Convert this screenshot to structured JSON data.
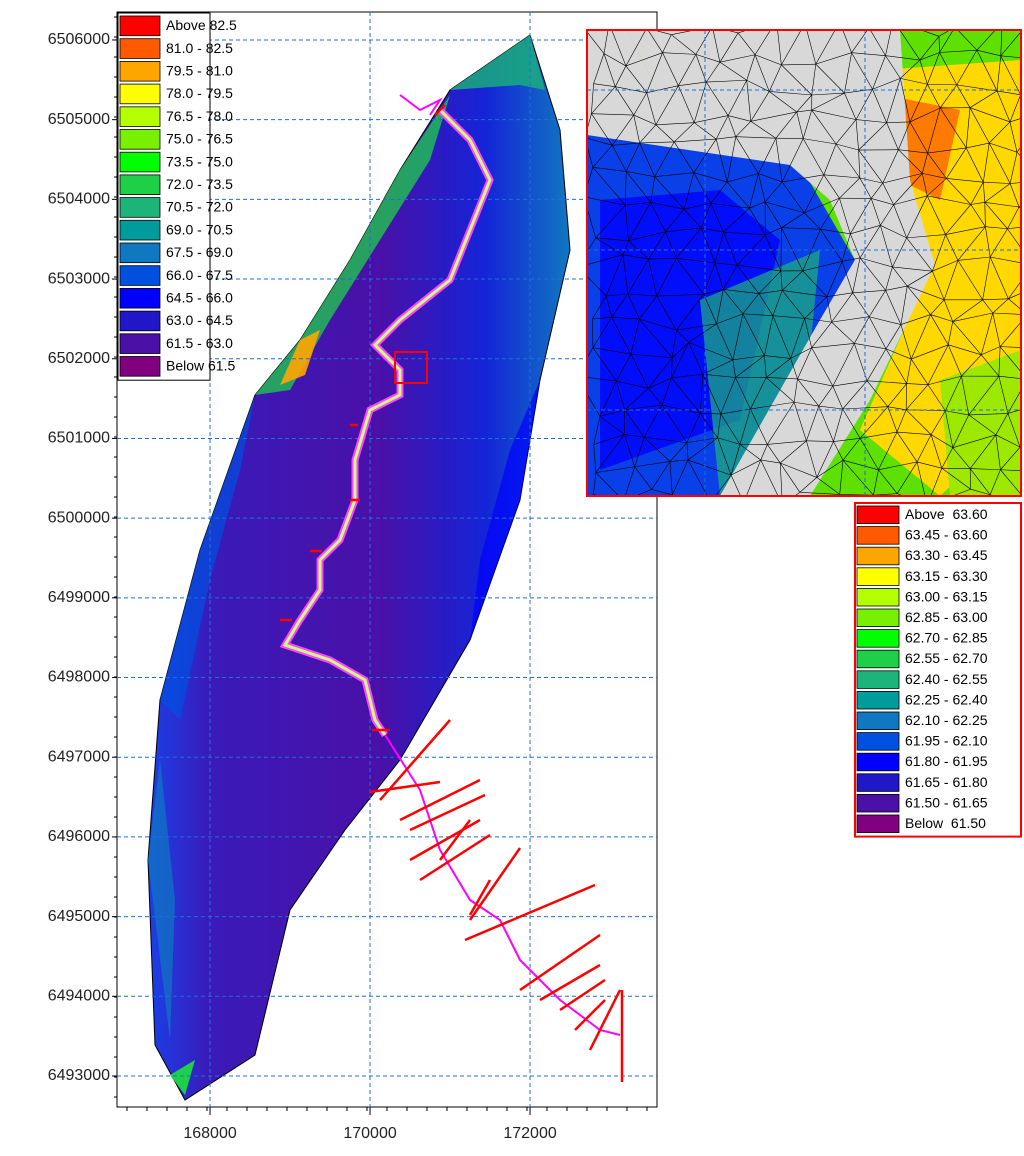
{
  "map": {
    "xlim": [
      166837,
      173587
    ],
    "ylim": [
      6492611,
      6506351
    ],
    "xticks": [
      168000,
      170000,
      172000
    ],
    "yticks": [
      6493000,
      6494000,
      6495000,
      6496000,
      6497000,
      6498000,
      6499000,
      6500000,
      6501000,
      6502000,
      6503000,
      6504000,
      6505000,
      6506000
    ],
    "grid": true,
    "legend": {
      "items": [
        {
          "label": "Above 82.5",
          "color": "#ff0000"
        },
        {
          "label": "81.0 - 82.5",
          "color": "#ff5a00"
        },
        {
          "label": "79.5 - 81.0",
          "color": "#ffa500"
        },
        {
          "label": "78.0 - 79.5",
          "color": "#ffff00"
        },
        {
          "label": "76.5 - 78.0",
          "color": "#b4ff00"
        },
        {
          "label": "75.0 - 76.5",
          "color": "#78f000"
        },
        {
          "label": "73.5 - 75.0",
          "color": "#00ff00"
        },
        {
          "label": "72.0 - 73.5",
          "color": "#1ed048"
        },
        {
          "label": "70.5 - 72.0",
          "color": "#1cb478"
        },
        {
          "label": "69.0 - 70.5",
          "color": "#009c9c"
        },
        {
          "label": "67.5 - 69.0",
          "color": "#1078c0"
        },
        {
          "label": "66.0 - 67.5",
          "color": "#0050e0"
        },
        {
          "label": "64.5 - 66.0",
          "color": "#0000ff"
        },
        {
          "label": "63.0 - 64.5",
          "color": "#2018c8"
        },
        {
          "label": "61.5 - 63.0",
          "color": "#4a10a8"
        },
        {
          "label": "Below 61.5",
          "color": "#800080"
        }
      ]
    },
    "inset_legend": {
      "items": [
        {
          "label": "Above  63.60",
          "color": "#ff0000"
        },
        {
          "label": "63.45 - 63.60",
          "color": "#ff5a00"
        },
        {
          "label": "63.30 - 63.45",
          "color": "#ffa500"
        },
        {
          "label": "63.15 - 63.30",
          "color": "#ffff00"
        },
        {
          "label": "63.00 - 63.15",
          "color": "#b4ff00"
        },
        {
          "label": "62.85 - 63.00",
          "color": "#78f000"
        },
        {
          "label": "62.70 - 62.85",
          "color": "#00ff00"
        },
        {
          "label": "62.55 - 62.70",
          "color": "#1ed048"
        },
        {
          "label": "62.40 - 62.55",
          "color": "#1cb478"
        },
        {
          "label": "62.25 - 62.40",
          "color": "#009c9c"
        },
        {
          "label": "62.10 - 62.25",
          "color": "#1078c0"
        },
        {
          "label": "61.95 - 62.10",
          "color": "#0050e0"
        },
        {
          "label": "61.80 - 61.95",
          "color": "#0000ff"
        },
        {
          "label": "61.65 - 61.80",
          "color": "#2018c8"
        },
        {
          "label": "61.50 - 61.65",
          "color": "#4a10a8"
        },
        {
          "label": "Below  61.50",
          "color": "#800080"
        }
      ]
    }
  }
}
